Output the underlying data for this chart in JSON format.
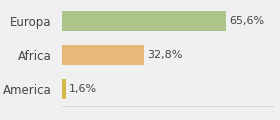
{
  "categories": [
    "America",
    "Africa",
    "Europa"
  ],
  "values": [
    1.6,
    32.8,
    65.6
  ],
  "labels": [
    "1,6%",
    "32,8%",
    "65,6%"
  ],
  "bar_colors": [
    "#d4b84a",
    "#e8b87a",
    "#adc48a"
  ],
  "background_color": "#f0f0f0",
  "xlim": [
    0,
    85
  ],
  "bar_height": 0.6,
  "label_fontsize": 8,
  "tick_fontsize": 8.5,
  "tick_color": "#444444",
  "label_color": "#444444"
}
